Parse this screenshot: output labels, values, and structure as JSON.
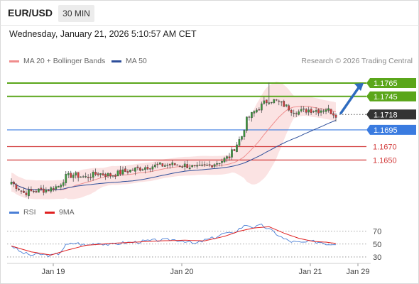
{
  "header": {
    "symbol": "EUR/USD",
    "timeframe": "30 MIN"
  },
  "datetime": "Wednesday, January 21, 2026 5:10:57 AM CET",
  "legend": {
    "ma20": {
      "label": "MA 20 + Bollinger Bands",
      "color": "#f08c8c"
    },
    "ma50": {
      "label": "MA 50",
      "color": "#2d4e9a"
    }
  },
  "credit": "Research © 2026 Trading Central",
  "rsi_legend": {
    "rsi": {
      "label": "RSI",
      "color": "#4a7fd6"
    },
    "ma9": {
      "label": "9MA",
      "color": "#e02020"
    }
  },
  "chart_data": [
    {
      "type": "candlestick",
      "yrange": [
        1.1592,
        1.1783
      ],
      "levels": [
        {
          "value": 1.1765,
          "label": "1.1765",
          "kind": "resistance",
          "color": "#5aa61a"
        },
        {
          "value": 1.1745,
          "label": "1.1745",
          "kind": "resistance",
          "color": "#5aa61a"
        },
        {
          "value": 1.1718,
          "label": "1.1718",
          "kind": "current",
          "color": "#333333"
        },
        {
          "value": 1.1695,
          "label": "1.1695",
          "kind": "pivot",
          "color": "#3a7be0"
        },
        {
          "value": 1.167,
          "label": "1.1670",
          "kind": "support",
          "color": "#d23a3a"
        },
        {
          "value": 1.165,
          "label": "1.1650",
          "kind": "support",
          "color": "#d23a3a"
        }
      ],
      "x_ticks": [
        "Jan 19",
        "Jan 20",
        "Jan 21",
        "Jan 29"
      ],
      "anchors": [
        [
          0,
          1.1617
        ],
        [
          5,
          1.1601
        ],
        [
          10,
          1.1604
        ],
        [
          15,
          1.1606
        ],
        [
          19,
          1.1611
        ],
        [
          22,
          1.1625
        ],
        [
          25,
          1.1628
        ],
        [
          30,
          1.1624
        ],
        [
          35,
          1.163
        ],
        [
          40,
          1.1627
        ],
        [
          45,
          1.1632
        ],
        [
          50,
          1.1636
        ],
        [
          55,
          1.164
        ],
        [
          60,
          1.1642
        ],
        [
          65,
          1.1643
        ],
        [
          70,
          1.1642
        ],
        [
          75,
          1.1638
        ],
        [
          80,
          1.1642
        ],
        [
          85,
          1.1649
        ],
        [
          88,
          1.1655
        ],
        [
          90,
          1.1668
        ],
        [
          93,
          1.1686
        ],
        [
          95,
          1.171
        ],
        [
          98,
          1.1722
        ],
        [
          100,
          1.1728
        ],
        [
          102,
          1.1735
        ],
        [
          104,
          1.174
        ],
        [
          107,
          1.1738
        ],
        [
          110,
          1.1732
        ],
        [
          113,
          1.1725
        ],
        [
          116,
          1.1722
        ],
        [
          120,
          1.1725
        ],
        [
          124,
          1.1724
        ],
        [
          127,
          1.1727
        ],
        [
          129,
          1.1722
        ],
        [
          131,
          1.1718
        ]
      ],
      "spike": {
        "index": 104,
        "high": 1.1766
      },
      "arrow": {
        "from": 1.172,
        "to": 1.1765
      }
    },
    {
      "type": "line",
      "name": "RSI",
      "yrange": [
        20,
        85
      ],
      "y_ticks": [
        70,
        50,
        30
      ],
      "rsi_anchors": [
        [
          0,
          48
        ],
        [
          4,
          37
        ],
        [
          8,
          33
        ],
        [
          12,
          34
        ],
        [
          16,
          32
        ],
        [
          19,
          35
        ],
        [
          22,
          48
        ],
        [
          26,
          52
        ],
        [
          30,
          48
        ],
        [
          35,
          52
        ],
        [
          40,
          49
        ],
        [
          45,
          52
        ],
        [
          50,
          53
        ],
        [
          55,
          55
        ],
        [
          60,
          56
        ],
        [
          65,
          57
        ],
        [
          70,
          55
        ],
        [
          74,
          50
        ],
        [
          78,
          56
        ],
        [
          82,
          60
        ],
        [
          86,
          67
        ],
        [
          89,
          66
        ],
        [
          92,
          74
        ],
        [
          95,
          80
        ],
        [
          98,
          76
        ],
        [
          101,
          79
        ],
        [
          104,
          73
        ],
        [
          107,
          66
        ],
        [
          110,
          58
        ],
        [
          113,
          54
        ],
        [
          117,
          52
        ],
        [
          121,
          54
        ],
        [
          125,
          53
        ],
        [
          128,
          50
        ],
        [
          131,
          51
        ]
      ],
      "ma9_anchors": [
        [
          0,
          47
        ],
        [
          8,
          38
        ],
        [
          16,
          33
        ],
        [
          22,
          40
        ],
        [
          30,
          48
        ],
        [
          40,
          51
        ],
        [
          50,
          53
        ],
        [
          60,
          55
        ],
        [
          70,
          56
        ],
        [
          78,
          55
        ],
        [
          86,
          62
        ],
        [
          92,
          70
        ],
        [
          98,
          75
        ],
        [
          104,
          77
        ],
        [
          110,
          67
        ],
        [
          116,
          59
        ],
        [
          122,
          54
        ],
        [
          127,
          53
        ],
        [
          131,
          51
        ]
      ]
    }
  ]
}
